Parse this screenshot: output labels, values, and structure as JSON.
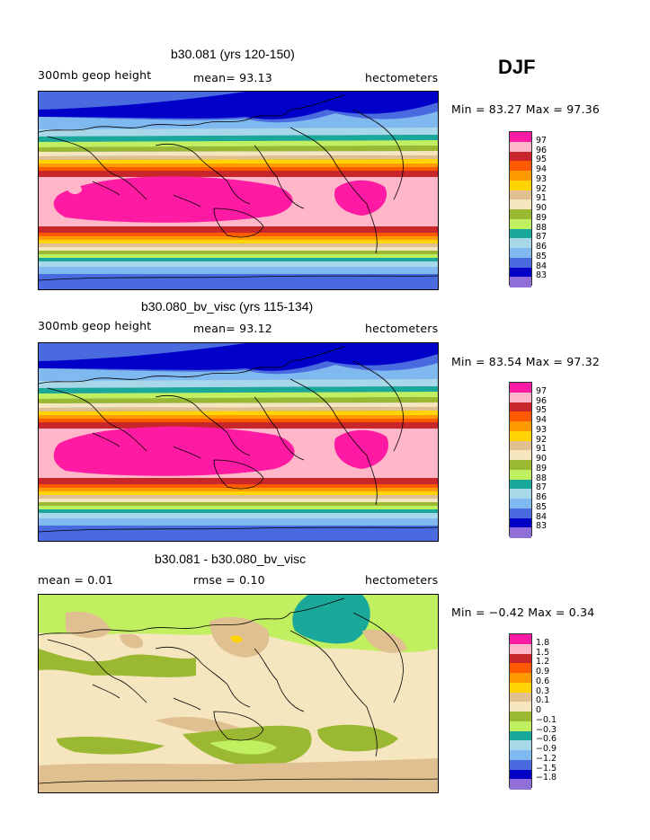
{
  "season": "DJF",
  "panels": [
    {
      "title": "b30.081 (yrs 120-150)",
      "left_label": "300mb geop height",
      "center_label": "mean=   93.13",
      "right_label": "hectometers",
      "minmax_label": "Min =   83.27 Max =   97.36",
      "colorbar": {
        "colors": [
          "#ff1aa3",
          "#ffb6c8",
          "#c8262b",
          "#ff5a00",
          "#ff9a00",
          "#ffd400",
          "#e0c090",
          "#f5e6c0",
          "#9bb833",
          "#c0f060",
          "#1aa89a",
          "#a8d8e8",
          "#80b8f0",
          "#4a6adf",
          "#0000c8",
          "#9070d8"
        ],
        "ticks": [
          "97",
          "96",
          "95",
          "94",
          "93",
          "92",
          "91",
          "90",
          "89",
          "88",
          "87",
          "86",
          "85",
          "84",
          "83"
        ]
      }
    },
    {
      "title": "b30.080_bv_visc (yrs 115-134)",
      "left_label": "300mb geop height",
      "center_label": "mean=   93.12",
      "right_label": "hectometers",
      "minmax_label": "Min =   83.54 Max =   97.32",
      "colorbar": {
        "colors": [
          "#ff1aa3",
          "#ffb6c8",
          "#c8262b",
          "#ff5a00",
          "#ff9a00",
          "#ffd400",
          "#e0c090",
          "#f5e6c0",
          "#9bb833",
          "#c0f060",
          "#1aa89a",
          "#a8d8e8",
          "#80b8f0",
          "#4a6adf",
          "#0000c8",
          "#9070d8"
        ],
        "ticks": [
          "97",
          "96",
          "95",
          "94",
          "93",
          "92",
          "91",
          "90",
          "89",
          "88",
          "87",
          "86",
          "85",
          "84",
          "83"
        ]
      }
    },
    {
      "title": "b30.081 - b30.080_bv_visc",
      "left_label": "mean =     0.01",
      "center_label": "rmse =     0.10",
      "right_label": "hectometers",
      "minmax_label": "Min =  −0.42 Max =     0.34",
      "colorbar": {
        "colors": [
          "#ff1aa3",
          "#ffb6c8",
          "#c8262b",
          "#ff5a00",
          "#ff9a00",
          "#ffd400",
          "#e0c090",
          "#f5e6c0",
          "#9bb833",
          "#c0f060",
          "#1aa89a",
          "#a8d8e8",
          "#80b8f0",
          "#4a6adf",
          "#0000c8",
          "#9070d8"
        ],
        "ticks": [
          "1.8",
          "1.5",
          "1.2",
          "0.9",
          "0.6",
          "0.3",
          "0.1",
          "0",
          "−0.1",
          "−0.3",
          "−0.6",
          "−0.9",
          "−1.2",
          "−1.5",
          "−1.8"
        ]
      }
    }
  ],
  "chart_data": [
    {
      "type": "heatmap",
      "title": "b30.081 (yrs 120-150)",
      "variable": "300mb geop height",
      "units": "hectometers",
      "mean": 93.13,
      "min": 83.27,
      "max": 97.36,
      "levels": [
        83,
        84,
        85,
        86,
        87,
        88,
        89,
        90,
        91,
        92,
        93,
        94,
        95,
        96,
        97
      ]
    },
    {
      "type": "heatmap",
      "title": "b30.080_bv_visc (yrs 115-134)",
      "variable": "300mb geop height",
      "units": "hectometers",
      "mean": 93.12,
      "min": 83.54,
      "max": 97.32,
      "levels": [
        83,
        84,
        85,
        86,
        87,
        88,
        89,
        90,
        91,
        92,
        93,
        94,
        95,
        96,
        97
      ]
    },
    {
      "type": "heatmap",
      "title": "b30.081 - b30.080_bv_visc",
      "units": "hectometers",
      "mean": 0.01,
      "rmse": 0.1,
      "min": -0.42,
      "max": 0.34,
      "levels": [
        -1.8,
        -1.5,
        -1.2,
        -0.9,
        -0.6,
        -0.3,
        -0.1,
        0,
        0.1,
        0.3,
        0.6,
        0.9,
        1.2,
        1.5,
        1.8
      ]
    }
  ]
}
